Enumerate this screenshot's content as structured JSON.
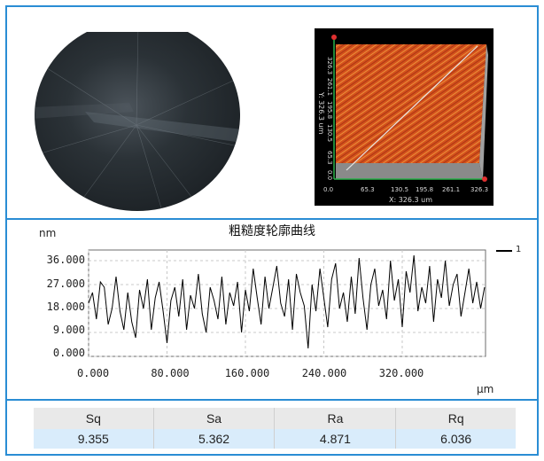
{
  "surface_3d": {
    "y_ticks": [
      "326.3",
      "261.1",
      "195.8",
      "130.5",
      "65.3",
      "0.0"
    ],
    "y_label": "Y: 326.3 um",
    "x_ticks": [
      "0.0",
      "65.3",
      "130.5",
      "195.8",
      "261.1",
      "326.3"
    ],
    "x_label": "X: 326.3 um"
  },
  "chart_data": {
    "type": "line",
    "title": "粗糙度轮廓曲线",
    "ylabel": "nm",
    "xlabel": "μm",
    "y_ticks": [
      "36.000",
      "27.000",
      "18.000",
      "9.000",
      "0.000"
    ],
    "x_ticks": [
      "0.000",
      "80.000",
      "160.000",
      "240.000",
      "320.000"
    ],
    "ylim": [
      0,
      40
    ],
    "xlim": [
      0,
      405
    ],
    "grid": true,
    "legend": "1",
    "legend_position": "top-right",
    "series": [
      {
        "name": "1",
        "x": [
          0,
          4,
          8,
          12,
          16,
          20,
          24,
          28,
          32,
          36,
          40,
          44,
          48,
          52,
          56,
          60,
          64,
          68,
          72,
          76,
          80,
          84,
          88,
          92,
          96,
          100,
          104,
          108,
          112,
          116,
          120,
          124,
          128,
          132,
          136,
          140,
          144,
          148,
          152,
          156,
          160,
          164,
          168,
          172,
          176,
          180,
          184,
          188,
          192,
          196,
          200,
          204,
          208,
          212,
          216,
          220,
          224,
          228,
          232,
          236,
          240,
          244,
          248,
          252,
          256,
          260,
          264,
          268,
          272,
          276,
          280,
          284,
          288,
          292,
          296,
          300,
          304,
          308,
          312,
          316,
          320,
          324,
          328,
          332,
          336,
          340,
          344,
          348,
          352,
          356,
          360,
          364,
          368,
          372,
          376,
          380,
          384,
          388,
          392,
          396,
          400,
          404
        ],
        "y": [
          20,
          24,
          14,
          28,
          26,
          12,
          18,
          30,
          17,
          10,
          24,
          13,
          7,
          25,
          18,
          29,
          10,
          22,
          28,
          17,
          5,
          21,
          26,
          15,
          29,
          10,
          23,
          18,
          31,
          16,
          9,
          26,
          21,
          14,
          30,
          12,
          24,
          19,
          28,
          9,
          25,
          17,
          33,
          22,
          12,
          30,
          18,
          26,
          34,
          20,
          15,
          29,
          10,
          31,
          24,
          19,
          3,
          27,
          17,
          33,
          22,
          11,
          29,
          35,
          18,
          24,
          13,
          30,
          16,
          37,
          22,
          10,
          27,
          33,
          19,
          25,
          14,
          36,
          21,
          29,
          11,
          32,
          24,
          38,
          17,
          26,
          20,
          34,
          13,
          29,
          22,
          36,
          19,
          27,
          31,
          15,
          24,
          33,
          20,
          28,
          18,
          26
        ]
      }
    ]
  },
  "stats_table": {
    "headers": [
      "Sq",
      "Sa",
      "Ra",
      "Rq"
    ],
    "values": [
      "9.355",
      "5.362",
      "4.871",
      "6.036"
    ]
  }
}
